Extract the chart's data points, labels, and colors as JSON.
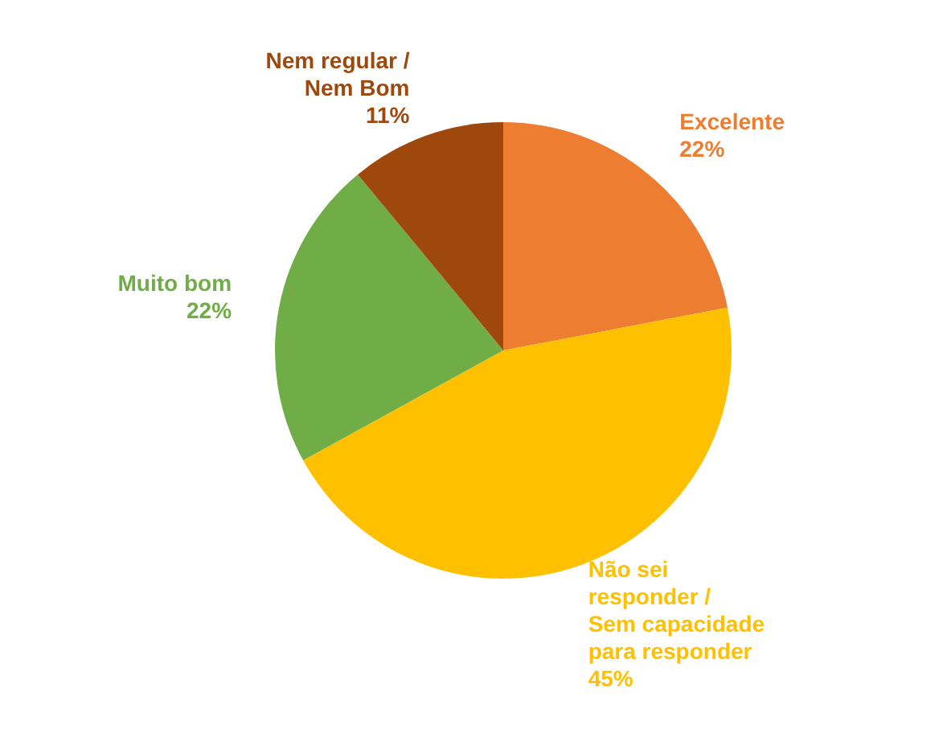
{
  "chart_data": {
    "type": "pie",
    "categories": [
      "Excelente",
      "Não sei responder / Sem capacidade para responder",
      "Muito bom",
      "Nem regular / Nem Bom"
    ],
    "values": [
      22,
      45,
      22,
      11
    ],
    "colors": [
      "#ed7d31",
      "#ffc000",
      "#70ad47",
      "#9e480e"
    ],
    "value_labels": [
      "22%",
      "45%",
      "22%",
      "11%"
    ]
  }
}
